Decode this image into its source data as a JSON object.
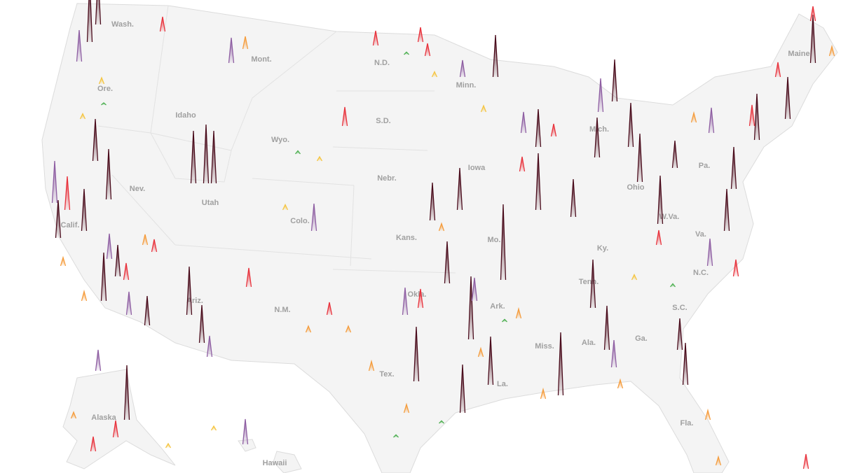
{
  "map": {
    "labels": [
      "Wash.",
      "Mont.",
      "N.D.",
      "Minn.",
      "Ore.",
      "Idaho",
      "S.D.",
      "Wyo.",
      "Maine",
      "Nebr.",
      "Nev.",
      "Utah",
      "Colo.",
      "Kans.",
      "Iowa",
      "Calif.",
      "Mo.",
      "Ohio",
      "Pa.",
      "W.Va.",
      "Va.",
      "Ky.",
      "N.M.",
      "Ariz.",
      "Okla.",
      "Ark.",
      "Tenn.",
      "N.C.",
      "Ala.",
      "Miss.",
      "Ga.",
      "S.C.",
      "Tex.",
      "La.",
      "Fla.",
      "Alaska",
      "Hawaii",
      "Mich."
    ],
    "spikes": [
      {
        "value": 300,
        "color": "#4a0c1c"
      },
      {
        "value": 250,
        "color": "#4a0c1c"
      },
      {
        "value": 150,
        "color": "#8e5ea2"
      },
      {
        "value": 70,
        "color": "#e8323c"
      },
      {
        "value": 120,
        "color": "#8e5ea2"
      },
      {
        "value": 60,
        "color": "#f59c3c"
      },
      {
        "value": 70,
        "color": "#e8323c"
      },
      {
        "value": 70,
        "color": "#e8323c"
      },
      {
        "value": 200,
        "color": "#4a0c1c"
      },
      {
        "value": 80,
        "color": "#8e5ea2"
      },
      {
        "value": 90,
        "color": "#e8323c"
      },
      {
        "value": 250,
        "color": "#4a0c1c"
      },
      {
        "value": 280,
        "color": "#4a0c1c"
      },
      {
        "value": 250,
        "color": "#4a0c1c"
      },
      {
        "value": 200,
        "color": "#4a0c1c"
      },
      {
        "value": 240,
        "color": "#4a0c1c"
      },
      {
        "value": 200,
        "color": "#8e5ea2"
      },
      {
        "value": 160,
        "color": "#e8323c"
      },
      {
        "value": 200,
        "color": "#4a0c1c"
      },
      {
        "value": 180,
        "color": "#4a0c1c"
      },
      {
        "value": 120,
        "color": "#8e5ea2"
      },
      {
        "value": 150,
        "color": "#4a0c1c"
      },
      {
        "value": 230,
        "color": "#4a0c1c"
      },
      {
        "value": 110,
        "color": "#8e5ea2"
      },
      {
        "value": 140,
        "color": "#4a0c1c"
      },
      {
        "value": 230,
        "color": "#4a0c1c"
      },
      {
        "value": 180,
        "color": "#4a0c1c"
      },
      {
        "value": 100,
        "color": "#8e5ea2"
      },
      {
        "value": 90,
        "color": "#e8323c"
      },
      {
        "value": 130,
        "color": "#8e5ea2"
      },
      {
        "value": 60,
        "color": "#e8323c"
      },
      {
        "value": 130,
        "color": "#8e5ea2"
      },
      {
        "value": 90,
        "color": "#e8323c"
      },
      {
        "value": 260,
        "color": "#4a0c1c"
      },
      {
        "value": 200,
        "color": "#4a0c1c"
      },
      {
        "value": 200,
        "color": "#4a0c1c"
      },
      {
        "value": 180,
        "color": "#4a0c1c"
      },
      {
        "value": 300,
        "color": "#4a0c1c"
      },
      {
        "value": 110,
        "color": "#8e5ea2"
      },
      {
        "value": 230,
        "color": "#4a0c1c"
      },
      {
        "value": 360,
        "color": "#4a0c1c"
      },
      {
        "value": 270,
        "color": "#4a0c1c"
      },
      {
        "value": 180,
        "color": "#4a0c1c"
      },
      {
        "value": 100,
        "color": "#8e5ea2"
      },
      {
        "value": 300,
        "color": "#4a0c1c"
      },
      {
        "value": 180,
        "color": "#4a0c1c"
      },
      {
        "value": 230,
        "color": "#4a0c1c"
      },
      {
        "value": 160,
        "color": "#8e5ea2"
      },
      {
        "value": 200,
        "color": "#4a0c1c"
      },
      {
        "value": 190,
        "color": "#4a0c1c"
      },
      {
        "value": 210,
        "color": "#4a0c1c"
      },
      {
        "value": 230,
        "color": "#4a0c1c"
      },
      {
        "value": 230,
        "color": "#4a0c1c"
      },
      {
        "value": 130,
        "color": "#4a0c1c"
      },
      {
        "value": 150,
        "color": "#4a0c1c"
      },
      {
        "value": 200,
        "color": "#4a0c1c"
      },
      {
        "value": 130,
        "color": "#8e5ea2"
      },
      {
        "value": 200,
        "color": "#4a0c1c"
      },
      {
        "value": 200,
        "color": "#4a0c1c"
      },
      {
        "value": 220,
        "color": "#4a0c1c"
      },
      {
        "value": 200,
        "color": "#4a0c1c"
      },
      {
        "value": 230,
        "color": "#4a0c1c"
      },
      {
        "value": 70,
        "color": "#e8323c"
      },
      {
        "value": 260,
        "color": "#4a0c1c"
      },
      {
        "value": 100,
        "color": "#8e5ea2"
      },
      {
        "value": 120,
        "color": "#8e5ea2"
      },
      {
        "value": 210,
        "color": "#4a0c1c"
      },
      {
        "value": 130,
        "color": "#8e5ea2"
      },
      {
        "value": 230,
        "color": "#4a0c1c"
      },
      {
        "value": 120,
        "color": "#8e5ea2"
      },
      {
        "value": 60,
        "color": "#e8323c"
      },
      {
        "value": 70,
        "color": "#e8323c"
      },
      {
        "value": 60,
        "color": "#e8323c"
      },
      {
        "value": 70,
        "color": "#e8323c"
      },
      {
        "value": 80,
        "color": "#e8323c"
      },
      {
        "value": 60,
        "color": "#e8323c"
      },
      {
        "value": 50,
        "color": "#f59c3c"
      },
      {
        "value": 40,
        "color": "#f59c3c"
      },
      {
        "value": 45,
        "color": "#f59c3c"
      },
      {
        "value": 25,
        "color": "#f5c542"
      },
      {
        "value": 15,
        "color": "#4caf50"
      },
      {
        "value": 20,
        "color": "#f5c542"
      },
      {
        "value": 40,
        "color": "#f59c3c"
      },
      {
        "value": 45,
        "color": "#f59c3c"
      },
      {
        "value": 30,
        "color": "#f59c3c"
      },
      {
        "value": 30,
        "color": "#f59c3c"
      },
      {
        "value": 35,
        "color": "#f59c3c"
      },
      {
        "value": 40,
        "color": "#f59c3c"
      },
      {
        "value": 45,
        "color": "#f59c3c"
      },
      {
        "value": 45,
        "color": "#f59c3c"
      },
      {
        "value": 40,
        "color": "#f59c3c"
      },
      {
        "value": 25,
        "color": "#f5c542"
      },
      {
        "value": 45,
        "color": "#f59c3c"
      },
      {
        "value": 40,
        "color": "#f59c3c"
      },
      {
        "value": 80,
        "color": "#e8323c"
      },
      {
        "value": 100,
        "color": "#e8323c"
      },
      {
        "value": 70,
        "color": "#e8323c"
      },
      {
        "value": 45,
        "color": "#f59c3c"
      },
      {
        "value": 45,
        "color": "#f59c3c"
      },
      {
        "value": 30,
        "color": "#f5c542"
      },
      {
        "value": 10,
        "color": "#4caf50"
      },
      {
        "value": 25,
        "color": "#f5c542"
      },
      {
        "value": 25,
        "color": "#f5c542"
      },
      {
        "value": 12,
        "color": "#4caf50"
      },
      {
        "value": 30,
        "color": "#f5c542"
      },
      {
        "value": 15,
        "color": "#4caf50"
      },
      {
        "value": 12,
        "color": "#4caf50"
      },
      {
        "value": 12,
        "color": "#4caf50"
      },
      {
        "value": 12,
        "color": "#4caf50"
      },
      {
        "value": 20,
        "color": "#f5c542"
      },
      {
        "value": 20,
        "color": "#f5c542"
      },
      {
        "value": 70,
        "color": "#e8323c"
      },
      {
        "value": 80,
        "color": "#e8323c"
      },
      {
        "value": 30,
        "color": "#f59c3c"
      },
      {
        "value": 70,
        "color": "#e8323c"
      }
    ]
  }
}
